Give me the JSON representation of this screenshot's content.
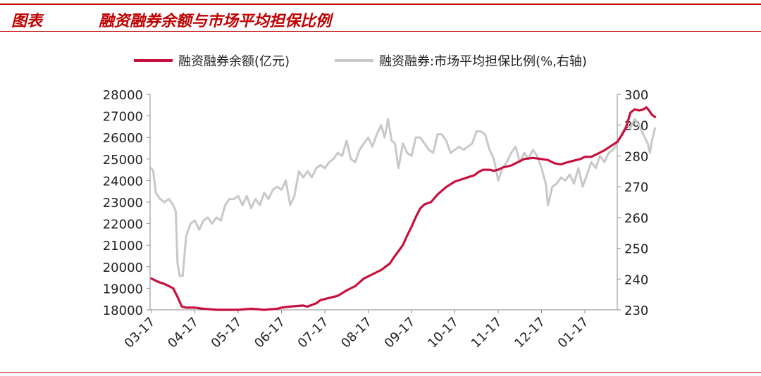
{
  "header": {
    "label": "图表",
    "title": "融资融券余额与市场平均担保比例"
  },
  "colors": {
    "accent": "#c00000",
    "balance_line": "#c8103e",
    "ratio_line": "#c8c8c8"
  },
  "chart_data": {
    "type": "line",
    "title": "",
    "x_tick_labels": [
      "03-17",
      "04-17",
      "05-17",
      "06-17",
      "07-17",
      "08-17",
      "09-17",
      "10-17",
      "11-17",
      "12-17",
      "01-17"
    ],
    "y_left": {
      "ticks": [
        18000,
        19000,
        20000,
        21000,
        22000,
        23000,
        24000,
        25000,
        26000,
        27000,
        28000
      ],
      "lim": [
        18000,
        28000
      ]
    },
    "y_right": {
      "ticks": [
        230,
        240,
        250,
        260,
        270,
        280,
        290,
        300
      ],
      "lim": [
        230,
        300
      ]
    },
    "grid": false,
    "legend_position": "top",
    "series": [
      {
        "name": "融资融券余额(亿元)",
        "axis": "left",
        "color": "#c8103e",
        "points": [
          [
            0.0,
            19450
          ],
          [
            0.05,
            19400
          ],
          [
            0.15,
            19300
          ],
          [
            0.3,
            19200
          ],
          [
            0.4,
            19100
          ],
          [
            0.5,
            19000
          ],
          [
            0.6,
            18600
          ],
          [
            0.7,
            18150
          ],
          [
            0.8,
            18100
          ],
          [
            1.0,
            18100
          ],
          [
            1.2,
            18050
          ],
          [
            1.5,
            18000
          ],
          [
            2.0,
            18000
          ],
          [
            2.3,
            18050
          ],
          [
            2.6,
            18000
          ],
          [
            2.9,
            18050
          ],
          [
            3.0,
            18100
          ],
          [
            3.2,
            18150
          ],
          [
            3.5,
            18200
          ],
          [
            3.6,
            18150
          ],
          [
            3.8,
            18300
          ],
          [
            3.9,
            18450
          ],
          [
            4.1,
            18550
          ],
          [
            4.3,
            18650
          ],
          [
            4.5,
            18900
          ],
          [
            4.7,
            19100
          ],
          [
            4.9,
            19450
          ],
          [
            5.1,
            19650
          ],
          [
            5.3,
            19850
          ],
          [
            5.5,
            20150
          ],
          [
            5.6,
            20450
          ],
          [
            5.8,
            21000
          ],
          [
            5.9,
            21450
          ],
          [
            6.0,
            21850
          ],
          [
            6.1,
            22300
          ],
          [
            6.2,
            22700
          ],
          [
            6.3,
            22900
          ],
          [
            6.45,
            23000
          ],
          [
            6.6,
            23350
          ],
          [
            6.8,
            23700
          ],
          [
            7.0,
            23950
          ],
          [
            7.15,
            24050
          ],
          [
            7.3,
            24150
          ],
          [
            7.45,
            24250
          ],
          [
            7.55,
            24400
          ],
          [
            7.65,
            24500
          ],
          [
            7.8,
            24500
          ],
          [
            7.9,
            24450
          ],
          [
            8.0,
            24500
          ],
          [
            8.1,
            24600
          ],
          [
            8.2,
            24650
          ],
          [
            8.3,
            24700
          ],
          [
            8.4,
            24800
          ],
          [
            8.5,
            24900
          ],
          [
            8.6,
            25000
          ],
          [
            8.8,
            25050
          ],
          [
            9.0,
            25000
          ],
          [
            9.15,
            24950
          ],
          [
            9.3,
            24800
          ],
          [
            9.45,
            24750
          ],
          [
            9.6,
            24850
          ],
          [
            9.8,
            24950
          ],
          [
            9.9,
            25000
          ],
          [
            10.0,
            25100
          ],
          [
            10.15,
            25100
          ],
          [
            10.3,
            25250
          ],
          [
            10.45,
            25400
          ],
          [
            10.6,
            25600
          ],
          [
            10.75,
            25800
          ],
          [
            10.85,
            26100
          ],
          [
            10.95,
            26450
          ],
          [
            11.0,
            26800
          ],
          [
            11.05,
            27150
          ],
          [
            11.15,
            27300
          ],
          [
            11.25,
            27250
          ],
          [
            11.35,
            27300
          ],
          [
            11.42,
            27400
          ],
          [
            11.48,
            27250
          ],
          [
            11.55,
            27050
          ],
          [
            11.62,
            26950
          ]
        ]
      },
      {
        "name": "融资融券:市场平均担保比例(%,右轴)",
        "axis": "right",
        "color": "#c8c8c8",
        "points": [
          [
            0.0,
            276
          ],
          [
            0.04,
            275
          ],
          [
            0.1,
            268
          ],
          [
            0.2,
            266
          ],
          [
            0.3,
            265
          ],
          [
            0.4,
            266
          ],
          [
            0.5,
            264
          ],
          [
            0.56,
            262
          ],
          [
            0.6,
            245
          ],
          [
            0.65,
            241
          ],
          [
            0.72,
            241
          ],
          [
            0.8,
            254
          ],
          [
            0.9,
            258
          ],
          [
            1.0,
            259
          ],
          [
            1.1,
            256
          ],
          [
            1.2,
            259
          ],
          [
            1.3,
            260
          ],
          [
            1.4,
            258
          ],
          [
            1.5,
            260
          ],
          [
            1.6,
            259
          ],
          [
            1.7,
            264
          ],
          [
            1.8,
            266
          ],
          [
            1.9,
            266
          ],
          [
            2.0,
            267
          ],
          [
            2.1,
            264
          ],
          [
            2.2,
            267
          ],
          [
            2.3,
            263
          ],
          [
            2.4,
            266
          ],
          [
            2.5,
            264
          ],
          [
            2.6,
            268
          ],
          [
            2.7,
            266
          ],
          [
            2.8,
            269
          ],
          [
            2.9,
            270
          ],
          [
            3.0,
            269
          ],
          [
            3.1,
            272
          ],
          [
            3.2,
            264
          ],
          [
            3.3,
            267
          ],
          [
            3.4,
            275
          ],
          [
            3.5,
            273
          ],
          [
            3.6,
            275
          ],
          [
            3.7,
            273
          ],
          [
            3.8,
            276
          ],
          [
            3.9,
            277
          ],
          [
            4.0,
            276
          ],
          [
            4.1,
            278
          ],
          [
            4.2,
            279
          ],
          [
            4.3,
            281
          ],
          [
            4.4,
            280
          ],
          [
            4.5,
            285
          ],
          [
            4.6,
            279
          ],
          [
            4.7,
            278
          ],
          [
            4.8,
            282
          ],
          [
            4.9,
            284
          ],
          [
            5.0,
            286
          ],
          [
            5.1,
            283
          ],
          [
            5.2,
            287
          ],
          [
            5.3,
            290
          ],
          [
            5.38,
            286
          ],
          [
            5.46,
            292
          ],
          [
            5.54,
            285
          ],
          [
            5.62,
            284
          ],
          [
            5.7,
            276
          ],
          [
            5.8,
            284
          ],
          [
            5.9,
            281
          ],
          [
            6.0,
            280
          ],
          [
            6.1,
            286
          ],
          [
            6.2,
            286
          ],
          [
            6.3,
            284
          ],
          [
            6.4,
            282
          ],
          [
            6.5,
            281
          ],
          [
            6.6,
            287
          ],
          [
            6.7,
            287
          ],
          [
            6.8,
            285
          ],
          [
            6.9,
            281
          ],
          [
            7.0,
            282
          ],
          [
            7.1,
            283
          ],
          [
            7.2,
            282
          ],
          [
            7.3,
            283
          ],
          [
            7.4,
            284
          ],
          [
            7.5,
            288
          ],
          [
            7.6,
            288
          ],
          [
            7.7,
            287
          ],
          [
            7.8,
            282
          ],
          [
            7.9,
            279
          ],
          [
            8.0,
            272
          ],
          [
            8.1,
            276
          ],
          [
            8.2,
            278
          ],
          [
            8.3,
            281
          ],
          [
            8.4,
            283
          ],
          [
            8.5,
            278
          ],
          [
            8.6,
            281
          ],
          [
            8.7,
            279
          ],
          [
            8.8,
            282
          ],
          [
            8.9,
            280
          ],
          [
            9.0,
            276
          ],
          [
            9.1,
            271
          ],
          [
            9.15,
            264
          ],
          [
            9.25,
            270
          ],
          [
            9.35,
            271
          ],
          [
            9.45,
            273
          ],
          [
            9.55,
            272
          ],
          [
            9.65,
            274
          ],
          [
            9.75,
            271
          ],
          [
            9.85,
            276
          ],
          [
            9.95,
            270
          ],
          [
            10.05,
            274
          ],
          [
            10.15,
            278
          ],
          [
            10.25,
            276
          ],
          [
            10.35,
            280
          ],
          [
            10.45,
            278
          ],
          [
            10.55,
            281
          ],
          [
            10.65,
            282
          ],
          [
            10.75,
            284
          ],
          [
            10.85,
            287
          ],
          [
            10.95,
            290
          ],
          [
            11.05,
            289
          ],
          [
            11.15,
            292
          ],
          [
            11.25,
            290
          ],
          [
            11.35,
            287
          ],
          [
            11.45,
            284
          ],
          [
            11.5,
            281
          ],
          [
            11.55,
            285
          ],
          [
            11.62,
            289
          ]
        ]
      }
    ]
  }
}
